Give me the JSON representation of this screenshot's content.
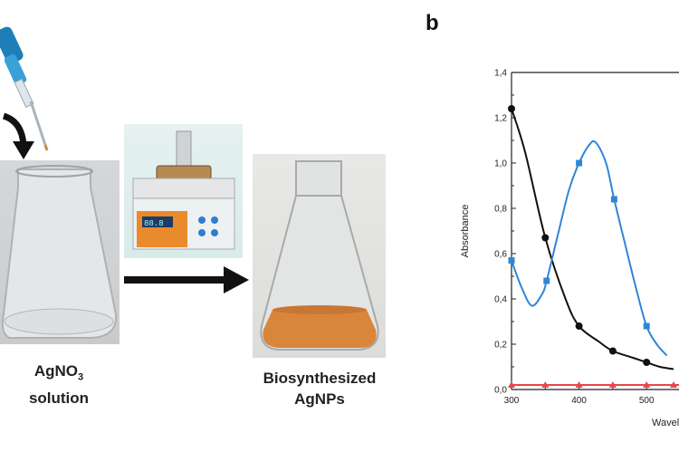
{
  "panel_letter": "b",
  "labels": {
    "agno3_main": "AgNO",
    "agno3_sub": "3",
    "agno3_line2": "solution",
    "result_line1": "Biosynthesized",
    "result_line2": "AgNPs"
  },
  "stirrer_display": "88.8",
  "colors": {
    "black_series": "#111111",
    "blue_series": "#2f86d6",
    "red_series": "#e8464b",
    "arrow": "#111111",
    "liquid": "#d9853c"
  },
  "chart_data": {
    "type": "line",
    "xlabel": "Wavel",
    "ylabel": "Absorbance",
    "x_ticks": [
      "300",
      "400",
      "500"
    ],
    "y_ticks": [
      "0,0",
      "0,2",
      "0,4",
      "0,6",
      "0,8",
      "1,0",
      "1,2",
      "1,4"
    ],
    "xlim": [
      300,
      548
    ],
    "ylim": [
      0,
      1.4
    ],
    "series": [
      {
        "marker": "circle",
        "color": "#111111",
        "points": [
          [
            300,
            1.24
          ],
          [
            320,
            1.05
          ],
          [
            350,
            0.67
          ],
          [
            380,
            0.4
          ],
          [
            400,
            0.28
          ],
          [
            430,
            0.21
          ],
          [
            450,
            0.17
          ],
          [
            480,
            0.14
          ],
          [
            500,
            0.12
          ],
          [
            520,
            0.1
          ],
          [
            540,
            0.09
          ]
        ],
        "marker_x": [
          300,
          350,
          400,
          450,
          500
        ]
      },
      {
        "marker": "square",
        "color": "#2f86d6",
        "points": [
          [
            300,
            0.57
          ],
          [
            315,
            0.45
          ],
          [
            330,
            0.37
          ],
          [
            345,
            0.42
          ],
          [
            352,
            0.48
          ],
          [
            370,
            0.7
          ],
          [
            385,
            0.88
          ],
          [
            400,
            1.0
          ],
          [
            415,
            1.08
          ],
          [
            425,
            1.09
          ],
          [
            440,
            1.0
          ],
          [
            452,
            0.84
          ],
          [
            470,
            0.62
          ],
          [
            485,
            0.44
          ],
          [
            500,
            0.28
          ],
          [
            515,
            0.2
          ],
          [
            530,
            0.15
          ]
        ],
        "marker_x": [
          300,
          352,
          400,
          452,
          500
        ]
      },
      {
        "marker": "triangle",
        "color": "#e8464b",
        "points": [
          [
            300,
            0.02
          ],
          [
            548,
            0.02
          ]
        ],
        "marker_x": [
          300,
          350,
          400,
          450,
          500,
          540
        ]
      }
    ]
  }
}
